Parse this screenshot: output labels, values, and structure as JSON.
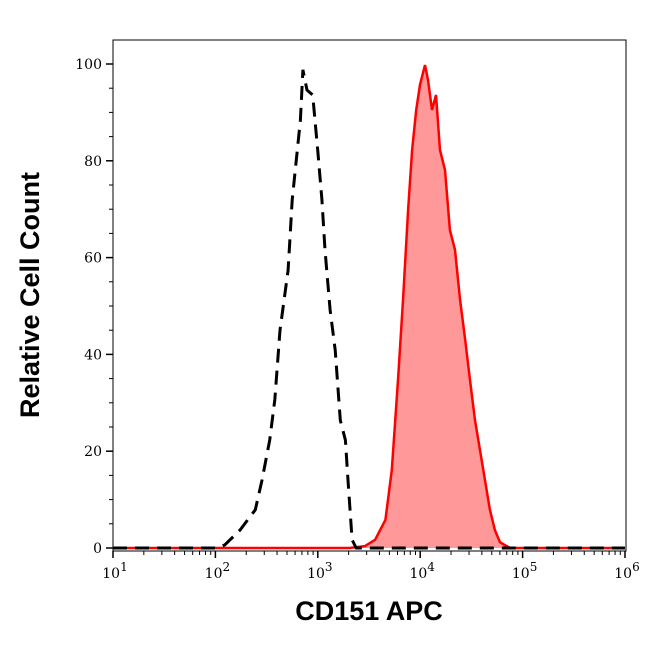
{
  "chart_data": {
    "type": "area",
    "xlabel": "CD151 APC",
    "ylabel": "Relative Cell Count",
    "x_scale": "log",
    "xlim": [
      10,
      1000000
    ],
    "ylim": [
      0,
      105
    ],
    "x_ticks": [
      {
        "base": "10",
        "exp": "1",
        "value": 10
      },
      {
        "base": "10",
        "exp": "2",
        "value": 100
      },
      {
        "base": "10",
        "exp": "3",
        "value": 1000
      },
      {
        "base": "10",
        "exp": "4",
        "value": 10000
      },
      {
        "base": "10",
        "exp": "5",
        "value": 100000
      },
      {
        "base": "10",
        "exp": "6",
        "value": 1000000
      }
    ],
    "y_ticks": [
      "0",
      "20",
      "40",
      "60",
      "80",
      "100"
    ],
    "grid": false,
    "series": [
      {
        "style": "dashed-line",
        "color": "#000000",
        "points": [
          [
            10,
            0
          ],
          [
            100,
            0
          ],
          [
            123,
            0.6
          ],
          [
            174,
            3.7
          ],
          [
            245,
            7.9
          ],
          [
            285,
            14
          ],
          [
            339,
            22.3
          ],
          [
            380,
            30.6
          ],
          [
            427,
            45
          ],
          [
            513,
            57.4
          ],
          [
            562,
            71.9
          ],
          [
            631,
            82.2
          ],
          [
            676,
            88.4
          ],
          [
            716,
            98.8
          ],
          [
            785,
            94.6
          ],
          [
            892,
            93.6
          ],
          [
            1000,
            82
          ],
          [
            1097,
            72
          ],
          [
            1175,
            61.6
          ],
          [
            1318,
            49.2
          ],
          [
            1479,
            40.9
          ],
          [
            1660,
            26.4
          ],
          [
            1862,
            22.3
          ],
          [
            1972,
            14
          ],
          [
            2163,
            1.7
          ],
          [
            2371,
            0
          ],
          [
            1000000,
            0
          ]
        ]
      },
      {
        "style": "filled",
        "color": "#ff0000",
        "fill": "#ff9999",
        "points": [
          [
            10,
            0
          ],
          [
            2040,
            0
          ],
          [
            2890,
            0.4
          ],
          [
            3630,
            1.7
          ],
          [
            4570,
            5.8
          ],
          [
            5280,
            16.1
          ],
          [
            6070,
            34.7
          ],
          [
            6800,
            51.2
          ],
          [
            7620,
            69.8
          ],
          [
            8330,
            82.2
          ],
          [
            9140,
            90.5
          ],
          [
            9960,
            95.7
          ],
          [
            11140,
            99.8
          ],
          [
            11920,
            96.7
          ],
          [
            13030,
            90.5
          ],
          [
            14270,
            93.6
          ],
          [
            15610,
            82.2
          ],
          [
            17460,
            78.1
          ],
          [
            19520,
            65.7
          ],
          [
            21880,
            61.6
          ],
          [
            24500,
            51.2
          ],
          [
            27500,
            43
          ],
          [
            30620,
            34.7
          ],
          [
            34270,
            26.4
          ],
          [
            38380,
            20.2
          ],
          [
            42950,
            14
          ],
          [
            47900,
            7.9
          ],
          [
            53700,
            3.7
          ],
          [
            60200,
            1.2
          ],
          [
            75400,
            0
          ],
          [
            1000000,
            0
          ]
        ]
      }
    ]
  }
}
